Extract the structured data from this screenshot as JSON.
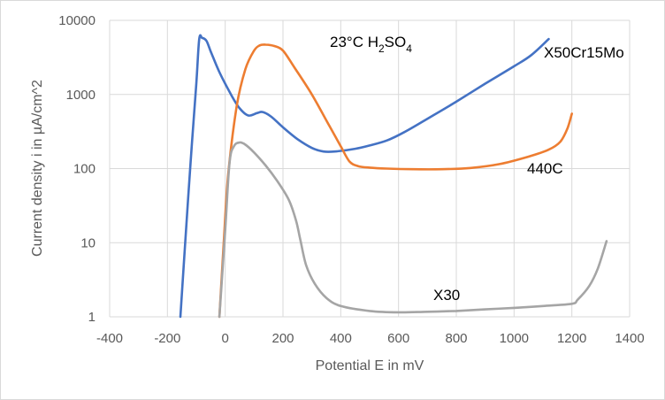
{
  "chart_data": {
    "type": "line",
    "title": "",
    "xlabel": "Potential E in mV",
    "ylabel": "Current density i in µA/cm^2",
    "xlim": [
      -400,
      1400
    ],
    "ylim": [
      1,
      10000
    ],
    "yscale": "log",
    "x_ticks": [
      "-400",
      "-200",
      "0",
      "200",
      "400",
      "600",
      "800",
      "1000",
      "1200",
      "1400"
    ],
    "y_ticks": [
      "1",
      "10",
      "100",
      "1000",
      "10000"
    ],
    "grid": true,
    "annotation": {
      "prefix": "23°C H",
      "sub1": "2",
      "mid": "SO",
      "sub2": "4"
    },
    "series": [
      {
        "name": "X50Cr15Mo",
        "color": "#4472c4",
        "points": [
          [
            -155,
            1
          ],
          [
            -140,
            8
          ],
          [
            -120,
            120
          ],
          [
            -100,
            1400
          ],
          [
            -90,
            5600
          ],
          [
            -80,
            5800
          ],
          [
            -65,
            5300
          ],
          [
            -50,
            3800
          ],
          [
            -20,
            2000
          ],
          [
            20,
            1000
          ],
          [
            50,
            650
          ],
          [
            80,
            520
          ],
          [
            110,
            560
          ],
          [
            130,
            580
          ],
          [
            160,
            500
          ],
          [
            200,
            360
          ],
          [
            250,
            250
          ],
          [
            300,
            190
          ],
          [
            340,
            170
          ],
          [
            380,
            170
          ],
          [
            450,
            185
          ],
          [
            500,
            205
          ],
          [
            560,
            240
          ],
          [
            620,
            310
          ],
          [
            700,
            470
          ],
          [
            800,
            800
          ],
          [
            900,
            1400
          ],
          [
            1000,
            2400
          ],
          [
            1060,
            3400
          ],
          [
            1120,
            5600
          ]
        ]
      },
      {
        "name": "440C",
        "color": "#ed7d31",
        "points": [
          [
            -20,
            1
          ],
          [
            -5,
            10
          ],
          [
            10,
            80
          ],
          [
            40,
            700
          ],
          [
            70,
            2200
          ],
          [
            100,
            3900
          ],
          [
            120,
            4600
          ],
          [
            140,
            4700
          ],
          [
            170,
            4500
          ],
          [
            200,
            3900
          ],
          [
            240,
            2300
          ],
          [
            300,
            1000
          ],
          [
            360,
            380
          ],
          [
            400,
            200
          ],
          [
            430,
            125
          ],
          [
            460,
            108
          ],
          [
            500,
            103
          ],
          [
            560,
            100
          ],
          [
            650,
            98
          ],
          [
            750,
            98
          ],
          [
            850,
            102
          ],
          [
            950,
            115
          ],
          [
            1050,
            145
          ],
          [
            1120,
            180
          ],
          [
            1160,
            230
          ],
          [
            1185,
            350
          ],
          [
            1200,
            550
          ]
        ]
      },
      {
        "name": "X30",
        "color": "#a5a5a5",
        "points": [
          [
            -20,
            1
          ],
          [
            0,
            15
          ],
          [
            15,
            120
          ],
          [
            30,
            200
          ],
          [
            50,
            225
          ],
          [
            70,
            210
          ],
          [
            100,
            165
          ],
          [
            140,
            110
          ],
          [
            180,
            68
          ],
          [
            220,
            38
          ],
          [
            245,
            20
          ],
          [
            260,
            11
          ],
          [
            280,
            5
          ],
          [
            310,
            2.8
          ],
          [
            350,
            1.8
          ],
          [
            400,
            1.4
          ],
          [
            500,
            1.2
          ],
          [
            600,
            1.15
          ],
          [
            700,
            1.17
          ],
          [
            800,
            1.2
          ],
          [
            900,
            1.26
          ],
          [
            1000,
            1.32
          ],
          [
            1100,
            1.4
          ],
          [
            1200,
            1.5
          ],
          [
            1220,
            1.7
          ],
          [
            1260,
            2.6
          ],
          [
            1290,
            4.5
          ],
          [
            1320,
            10.5
          ]
        ]
      }
    ],
    "labels": [
      "X50Cr15Mo",
      "440C",
      "X30"
    ]
  }
}
